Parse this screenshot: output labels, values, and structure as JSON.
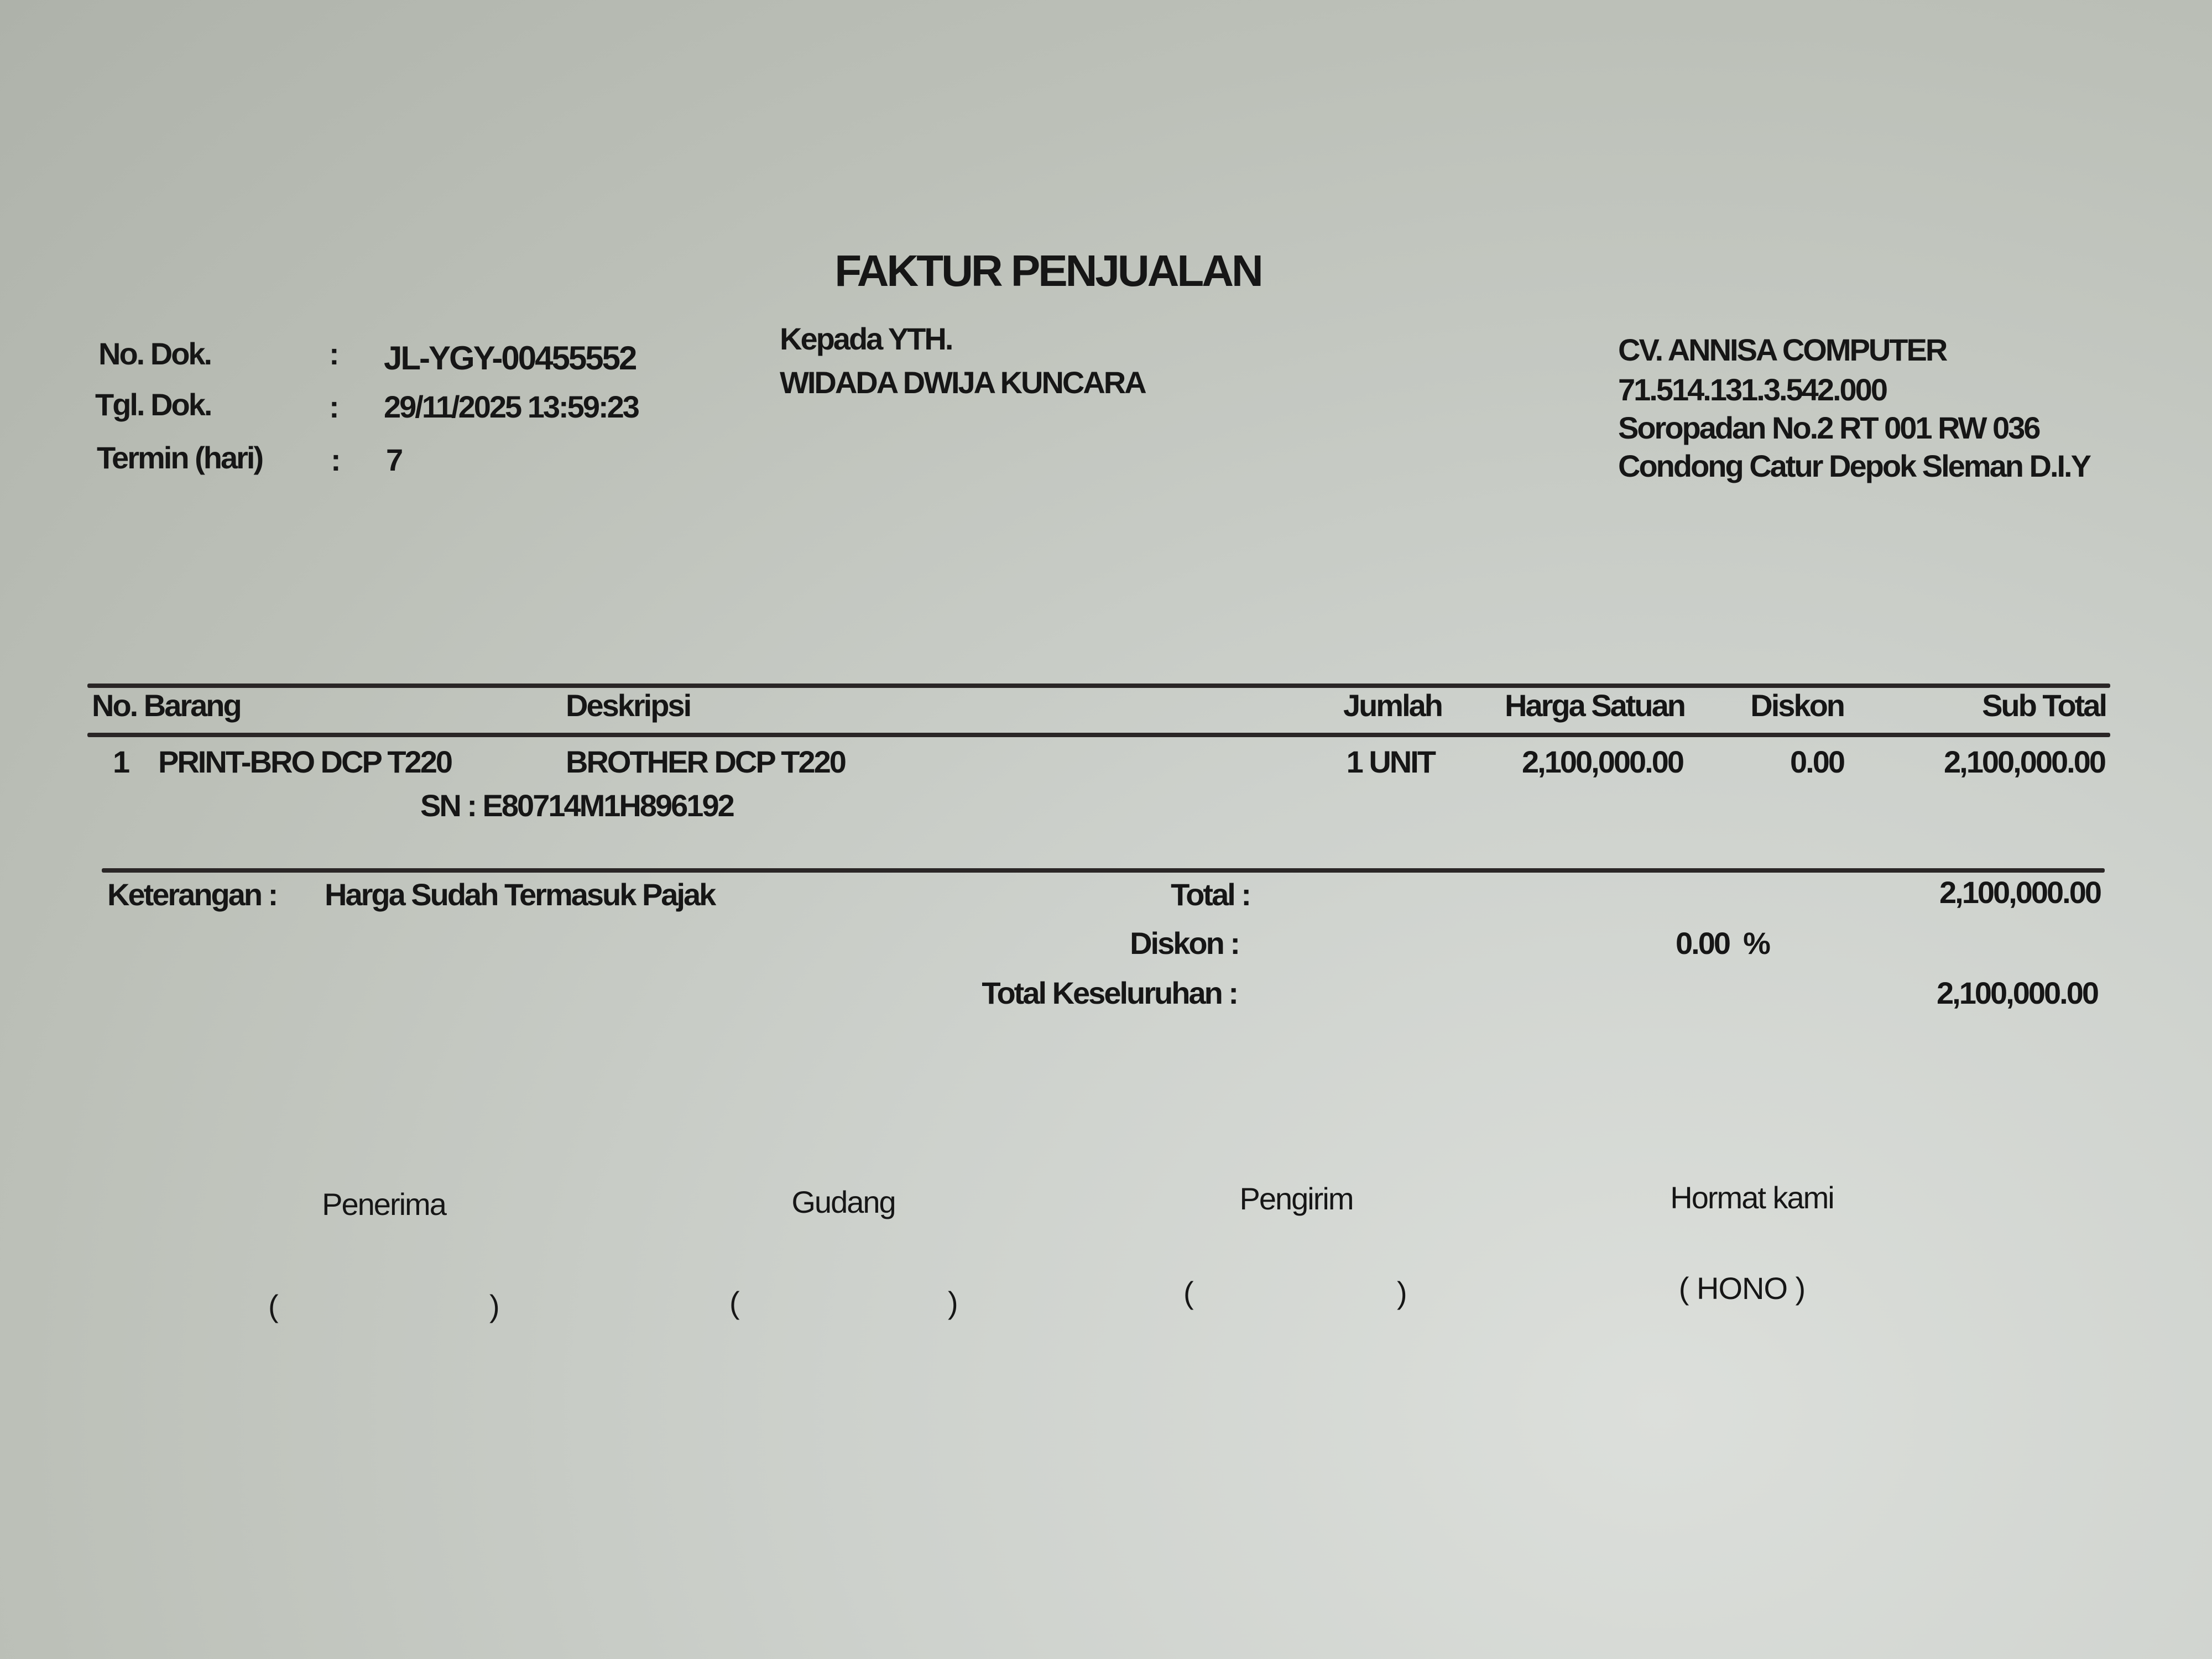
{
  "title": "FAKTUR PENJUALAN",
  "doc_info": {
    "no_dok_label": "No. Dok.",
    "no_dok_value": "JL-YGY-00455552",
    "tgl_dok_label": "Tgl. Dok.",
    "tgl_dok_value": "29/11/2025 13:59:23",
    "termin_label": "Termin (hari)",
    "termin_value": "7",
    "colon": ":"
  },
  "recipient": {
    "label": "Kepada YTH.",
    "name": "WIDADA DWIJA KUNCARA"
  },
  "company": {
    "name": "CV. ANNISA COMPUTER",
    "npwp": "71.514.131.3.542.000",
    "address1": "Soropadan No.2  RT 001 RW 036",
    "address2": "Condong Catur Depok Sleman D.I.Y"
  },
  "table": {
    "headers": [
      "No. Barang",
      "Deskripsi",
      "Jumlah",
      "Harga Satuan",
      "Diskon",
      "Sub Total"
    ],
    "rows": [
      {
        "no": "1",
        "kode": "PRINT-BRO DCP T220",
        "deskripsi": "BROTHER DCP T220",
        "jumlah": "1 UNIT",
        "harga_satuan": "2,100,000.00",
        "diskon": "0.00",
        "sub_total": "2,100,000.00",
        "sn": "SN  : E80714M1H896192"
      }
    ]
  },
  "summary": {
    "keterangan_label": "Keterangan :",
    "keterangan_value": "Harga Sudah Termasuk Pajak",
    "total_label": "Total :",
    "total_value": "2,100,000.00",
    "diskon_label": "Diskon :",
    "diskon_value": "0.00  %",
    "grand_total_label": "Total Keseluruhan :",
    "grand_total_value": "2,100,000.00"
  },
  "signatures": {
    "penerima": "Penerima",
    "gudang": "Gudang",
    "pengirim": "Pengirim",
    "hormat_kami": "Hormat kami",
    "open_paren": "(",
    "close_paren": ")",
    "hormat_name": "( HONO )"
  }
}
